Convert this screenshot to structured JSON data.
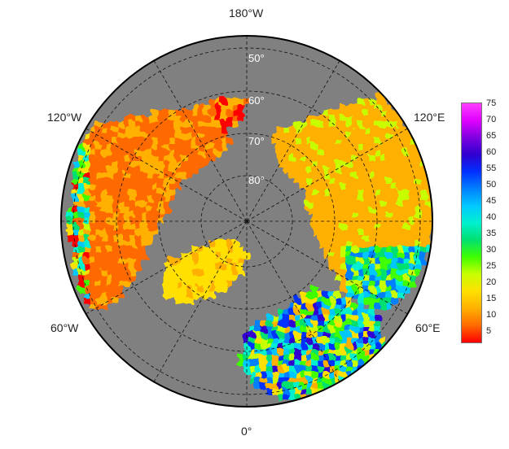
{
  "map": {
    "projection": "north-polar-stereographic",
    "background_color": "#808080",
    "missing_value_color": "#808080",
    "graticule_color": "#111111",
    "longitude_labels": [
      {
        "id": "lon-180",
        "text": "180°W"
      },
      {
        "id": "lon-120w",
        "text": "120°W"
      },
      {
        "id": "lon-120e",
        "text": "120°E"
      },
      {
        "id": "lon-60w",
        "text": "60°W"
      },
      {
        "id": "lon-60e",
        "text": "60°E"
      },
      {
        "id": "lon-0",
        "text": "0°"
      }
    ],
    "latitude_labels": [
      {
        "id": "lat-50",
        "text": "50°"
      },
      {
        "id": "lat-60",
        "text": "60°"
      },
      {
        "id": "lat-70",
        "text": "70°"
      },
      {
        "id": "lat-80",
        "text": "80°"
      }
    ]
  },
  "colorbar": {
    "min": 0,
    "max": 75,
    "ticks": [
      "75",
      "70",
      "65",
      "60",
      "55",
      "50",
      "45",
      "40",
      "35",
      "30",
      "25",
      "20",
      "15",
      "10",
      "5"
    ],
    "colors": [
      "#ff0000",
      "#ff6a00",
      "#ffb000",
      "#ffe000",
      "#c8ff00",
      "#40ff00",
      "#00e070",
      "#00f0d0",
      "#00c8ff",
      "#0080ff",
      "#0030ff",
      "#3000d0",
      "#8000e0",
      "#e000ff",
      "#ff40ff"
    ]
  }
}
